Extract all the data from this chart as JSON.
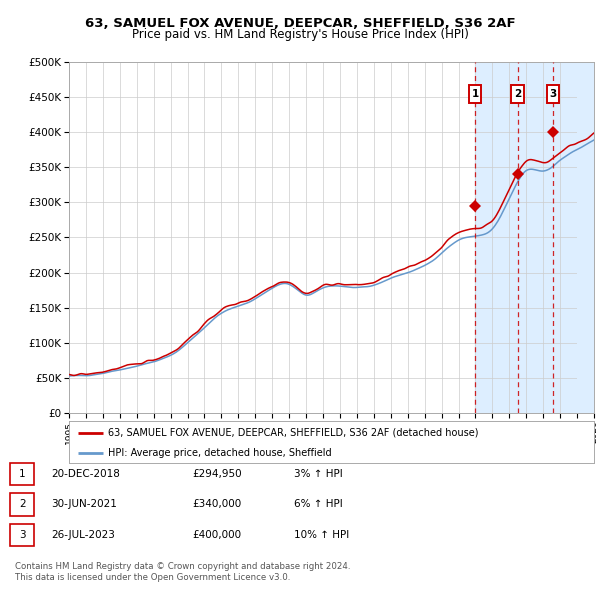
{
  "title": "63, SAMUEL FOX AVENUE, DEEPCAR, SHEFFIELD, S36 2AF",
  "subtitle": "Price paid vs. HM Land Registry's House Price Index (HPI)",
  "legend_line1": "63, SAMUEL FOX AVENUE, DEEPCAR, SHEFFIELD, S36 2AF (detached house)",
  "legend_line2": "HPI: Average price, detached house, Sheffield",
  "footer1": "Contains HM Land Registry data © Crown copyright and database right 2024.",
  "footer2": "This data is licensed under the Open Government Licence v3.0.",
  "sales": [
    {
      "num": 1,
      "date": "20-DEC-2018",
      "price": 294950,
      "year": 2018.97,
      "pct": "3%",
      "dir": "↑"
    },
    {
      "num": 2,
      "date": "30-JUN-2021",
      "price": 340000,
      "year": 2021.5,
      "pct": "6%",
      "dir": "↑"
    },
    {
      "num": 3,
      "date": "26-JUL-2023",
      "price": 400000,
      "year": 2023.58,
      "pct": "10%",
      "dir": "↑"
    }
  ],
  "hpi_anchors": {
    "1995": 52000,
    "1996": 54000,
    "1997": 57000,
    "1998": 62000,
    "1999": 67000,
    "2000": 73000,
    "2001": 82000,
    "2002": 100000,
    "2003": 122000,
    "2004": 142000,
    "2005": 152000,
    "2006": 163000,
    "2007": 178000,
    "2008": 183000,
    "2009": 168000,
    "2010": 178000,
    "2011": 181000,
    "2012": 178000,
    "2013": 182000,
    "2014": 192000,
    "2015": 200000,
    "2016": 210000,
    "2017": 228000,
    "2018": 246000,
    "2019": 252000,
    "2020": 262000,
    "2021": 305000,
    "2022": 345000,
    "2023": 345000,
    "2024": 360000,
    "2025": 375000,
    "2026": 388000
  },
  "hpi_color": "#6699cc",
  "price_color": "#cc0000",
  "dot_color": "#cc0000",
  "vline_color": "#cc0000",
  "shade_color": "#ddeeff",
  "hatch_color": "#aabbcc",
  "grid_color": "#cccccc",
  "bg_color": "#ffffff",
  "xmin": 1995,
  "xmax": 2026,
  "ymin": 0,
  "ymax": 500000,
  "yticks": [
    0,
    50000,
    100000,
    150000,
    200000,
    250000,
    300000,
    350000,
    400000,
    450000,
    500000
  ],
  "xticks": [
    1995,
    1996,
    1997,
    1998,
    1999,
    2000,
    2001,
    2002,
    2003,
    2004,
    2005,
    2006,
    2007,
    2008,
    2009,
    2010,
    2011,
    2012,
    2013,
    2014,
    2015,
    2016,
    2017,
    2018,
    2019,
    2020,
    2021,
    2022,
    2023,
    2024,
    2025,
    2026
  ]
}
